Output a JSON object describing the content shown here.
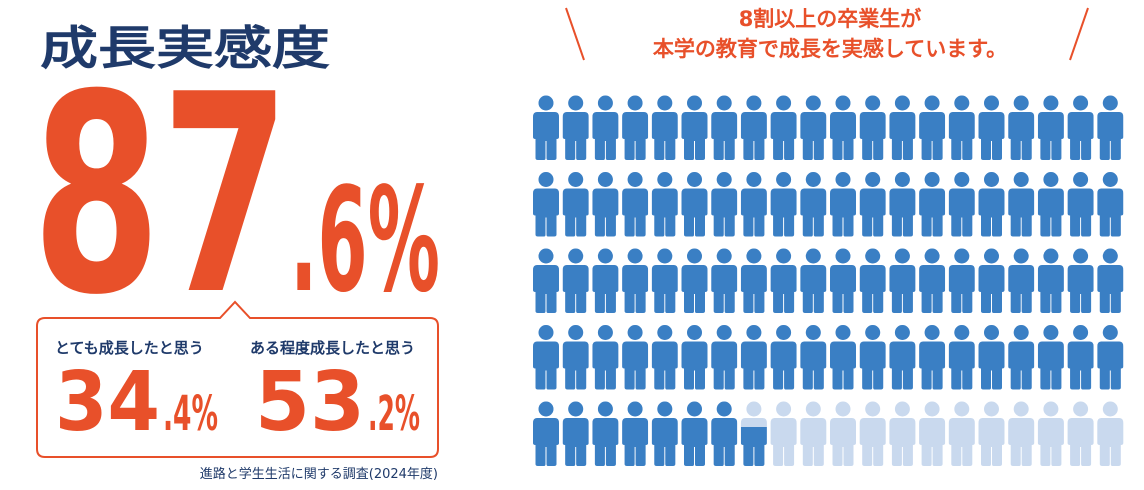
{
  "title": "成長実感度",
  "headline": {
    "value": 87.6,
    "integer_part": "87",
    "fraction_part": ".6%"
  },
  "breakdown": [
    {
      "label": "とても成長したと思う",
      "integer_part": "34",
      "fraction_part": ".4%"
    },
    {
      "label": "ある程度成長したと思う",
      "integer_part": "53",
      "fraction_part": ".2%"
    }
  ],
  "source": "進路と学生生活に関する調査(2024年度)",
  "pictogram": {
    "caption_lines": [
      "8割以上の卒業生が",
      "本学の教育で成長を実感しています。"
    ],
    "filled_color": "#3a7fc4",
    "empty_color": "#c9d9ee"
  }
}
